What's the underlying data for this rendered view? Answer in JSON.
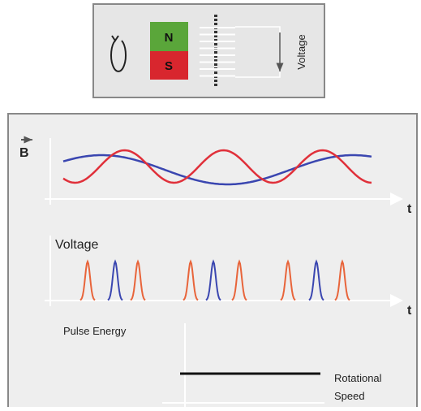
{
  "top_panel": {
    "north": "N",
    "south": "S",
    "voltage": "Voltage"
  },
  "graphs": {
    "field_label": "B",
    "time_label_1": "t",
    "voltage_label": "Voltage",
    "time_label_2": "t",
    "pulse_energy_label": "Pulse Energy",
    "speed_label_line1": "Rotational",
    "speed_label_line2": "Speed"
  }
}
